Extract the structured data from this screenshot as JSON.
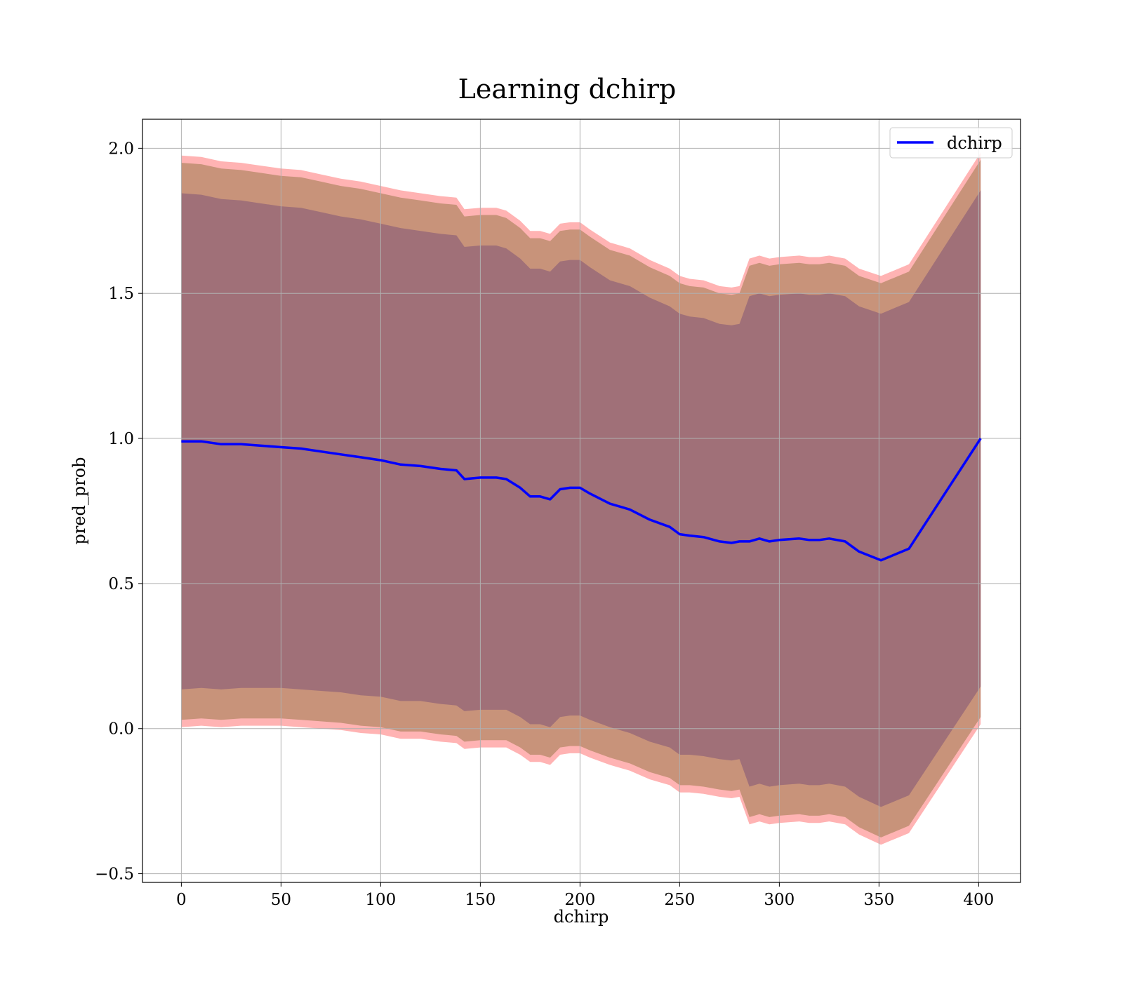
{
  "chart_data": {
    "type": "line",
    "title": "Learning dchirp",
    "xlabel": "dchirp",
    "ylabel": "pred_prob",
    "xlim": [
      -19.5,
      421
    ],
    "ylim": [
      -0.53,
      2.1
    ],
    "xticks": [
      0,
      50,
      100,
      150,
      200,
      250,
      300,
      350,
      400
    ],
    "yticks": [
      -0.5,
      0.0,
      0.5,
      1.0,
      1.5,
      2.0
    ],
    "xtick_labels": [
      "0",
      "50",
      "100",
      "150",
      "200",
      "250",
      "300",
      "350",
      "400"
    ],
    "ytick_labels": [
      "−0.5",
      "0.0",
      "0.5",
      "1.0",
      "1.5",
      "2.0"
    ],
    "grid": true,
    "legend": {
      "position": "top-right",
      "entries": [
        "dchirp"
      ]
    },
    "colors": {
      "line": "#0000ff",
      "band_outer": "#ff9999",
      "band_middle": "#c8937a",
      "band_inner": "#a07078",
      "grid": "#b0b0b0"
    },
    "series": [
      {
        "name": "dchirp",
        "x": [
          0,
          10,
          20,
          30,
          40,
          50,
          60,
          70,
          80,
          90,
          100,
          110,
          120,
          130,
          138,
          142,
          150,
          158,
          163,
          170,
          175,
          180,
          185,
          190,
          195,
          200,
          205,
          215,
          225,
          235,
          245,
          250,
          255,
          262,
          270,
          276,
          280,
          285,
          290,
          295,
          300,
          310,
          315,
          320,
          325,
          333,
          340,
          351,
          365,
          401
        ],
        "y": [
          0.99,
          0.99,
          0.98,
          0.98,
          0.975,
          0.97,
          0.965,
          0.955,
          0.945,
          0.935,
          0.925,
          0.91,
          0.905,
          0.895,
          0.89,
          0.86,
          0.865,
          0.865,
          0.86,
          0.83,
          0.8,
          0.8,
          0.79,
          0.825,
          0.83,
          0.83,
          0.81,
          0.775,
          0.755,
          0.72,
          0.695,
          0.67,
          0.665,
          0.66,
          0.645,
          0.64,
          0.645,
          0.645,
          0.655,
          0.645,
          0.65,
          0.655,
          0.65,
          0.65,
          0.655,
          0.645,
          0.61,
          0.58,
          0.62,
          1.0
        ]
      }
    ],
    "bands": [
      {
        "level": "outer",
        "halfwidth": [
          0.985,
          0.98,
          0.975,
          0.97,
          0.965,
          0.96,
          0.96,
          0.955,
          0.95,
          0.95,
          0.945,
          0.945,
          0.94,
          0.94,
          0.94,
          0.93,
          0.93,
          0.93,
          0.925,
          0.92,
          0.915,
          0.915,
          0.915,
          0.915,
          0.915,
          0.915,
          0.91,
          0.9,
          0.9,
          0.895,
          0.89,
          0.89,
          0.885,
          0.885,
          0.88,
          0.88,
          0.88,
          0.975,
          0.975,
          0.975,
          0.975,
          0.975,
          0.975,
          0.975,
          0.975,
          0.975,
          0.975,
          0.98,
          0.98,
          0.985
        ]
      },
      {
        "level": "middle",
        "halfwidth": [
          0.96,
          0.955,
          0.95,
          0.945,
          0.94,
          0.935,
          0.935,
          0.93,
          0.925,
          0.925,
          0.92,
          0.92,
          0.915,
          0.915,
          0.915,
          0.905,
          0.905,
          0.905,
          0.9,
          0.895,
          0.89,
          0.89,
          0.89,
          0.89,
          0.89,
          0.89,
          0.885,
          0.875,
          0.875,
          0.87,
          0.865,
          0.865,
          0.86,
          0.86,
          0.855,
          0.855,
          0.855,
          0.95,
          0.95,
          0.95,
          0.95,
          0.95,
          0.95,
          0.95,
          0.95,
          0.95,
          0.95,
          0.955,
          0.955,
          0.96
        ]
      },
      {
        "level": "inner",
        "halfwidth": [
          0.855,
          0.85,
          0.845,
          0.84,
          0.835,
          0.83,
          0.83,
          0.825,
          0.82,
          0.82,
          0.815,
          0.815,
          0.81,
          0.81,
          0.81,
          0.8,
          0.8,
          0.8,
          0.795,
          0.79,
          0.785,
          0.785,
          0.785,
          0.785,
          0.785,
          0.785,
          0.78,
          0.77,
          0.77,
          0.765,
          0.76,
          0.76,
          0.755,
          0.755,
          0.75,
          0.75,
          0.75,
          0.845,
          0.845,
          0.845,
          0.845,
          0.845,
          0.845,
          0.845,
          0.845,
          0.845,
          0.845,
          0.85,
          0.85,
          0.855
        ]
      }
    ]
  }
}
